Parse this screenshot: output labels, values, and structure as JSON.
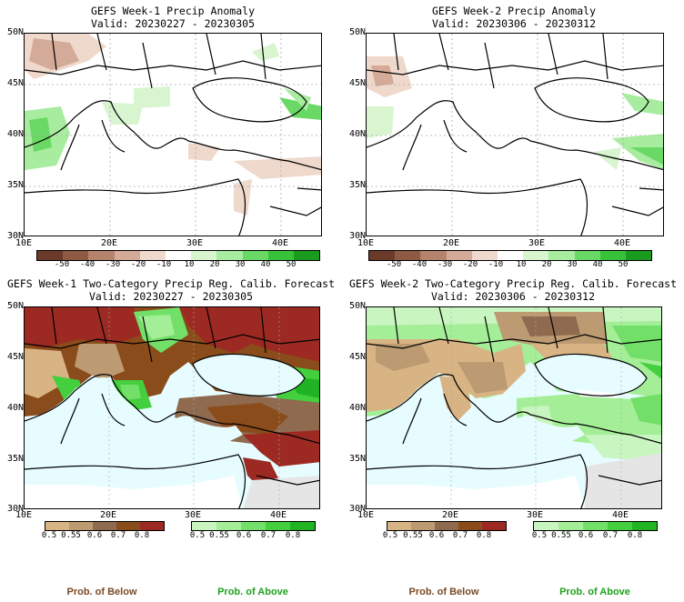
{
  "panels": [
    {
      "title": "GEFS Week-1 Precip Anomaly",
      "valid": "Valid: 20230227 - 20230305"
    },
    {
      "title": "GEFS Week-2 Precip Anomaly",
      "valid": "Valid: 20230306 - 20230312"
    },
    {
      "title": "GEFS Week-1 Two-Category Precip Reg. Calib. Forecast",
      "valid": "Valid: 20230227 - 20230305"
    },
    {
      "title": "GEFS Week-2 Two-Category Precip Reg. Calib. Forecast",
      "valid": "Valid: 20230306 - 20230312"
    }
  ],
  "axes": {
    "lat_labels": [
      "50N",
      "45N",
      "40N",
      "35N",
      "30N"
    ],
    "lon_labels": [
      "10E",
      "20E",
      "30E",
      "40E"
    ]
  },
  "anomaly_colorbar": {
    "ticks": [
      "-50",
      "-40",
      "-30",
      "-20",
      "-10",
      "10",
      "20",
      "30",
      "40",
      "50"
    ],
    "colors": [
      "#6b3a2a",
      "#8f5a44",
      "#b5826c",
      "#d4aa98",
      "#efd8cc",
      "#ffffff",
      "#d8f5d0",
      "#a8eca0",
      "#6ad864",
      "#38c23a",
      "#1a9a1e"
    ]
  },
  "prob_colorbars": {
    "below": {
      "ticks": [
        "0.5",
        "0.55",
        "0.6",
        "0.7",
        "0.8"
      ],
      "colors": [
        "#d8b383",
        "#bc9a72",
        "#8f6a4e",
        "#8a4c1a",
        "#9c2a22"
      ],
      "label": "Prob. of Below"
    },
    "above": {
      "ticks": [
        "0.5",
        "0.55",
        "0.6",
        "0.7",
        "0.8"
      ],
      "colors": [
        "#c8f5c0",
        "#a4ee98",
        "#72e068",
        "#44cf3e",
        "#20b424"
      ],
      "label": "Prob. of Above"
    }
  },
  "map_colors": {
    "sea": "#e6fcff",
    "land_white": "#ffffff",
    "nodata": "#e5e5e5"
  }
}
